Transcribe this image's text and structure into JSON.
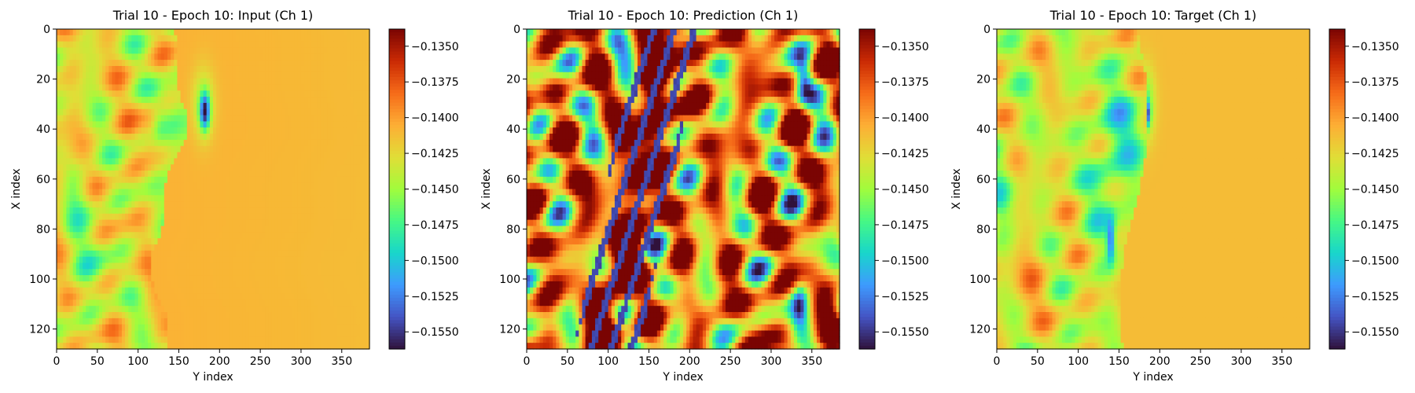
{
  "chart_data": [
    {
      "type": "heatmap",
      "title": "Trial 10 - Epoch 10: Input (Ch 1)",
      "xlabel": "Y index",
      "ylabel": "X index",
      "xlim": [
        0,
        384
      ],
      "ylim": [
        128,
        0
      ],
      "xticks": [
        0,
        50,
        100,
        150,
        200,
        250,
        300,
        350
      ],
      "yticks": [
        0,
        20,
        40,
        60,
        80,
        100,
        120
      ],
      "colorbar": {
        "range": [
          -0.1562,
          -0.1338
        ],
        "ticks": [
          "-0.1350",
          "-0.1375",
          "-0.1400",
          "-0.1425",
          "-0.1450",
          "-0.1475",
          "-0.1500",
          "-0.1525",
          "-0.1550"
        ]
      },
      "colormap": "turbo",
      "grid": false
    },
    {
      "type": "heatmap",
      "title": "Trial 10 - Epoch 10: Prediction (Ch 1)",
      "xlabel": "Y index",
      "ylabel": "X index",
      "xlim": [
        0,
        384
      ],
      "ylim": [
        128,
        0
      ],
      "xticks": [
        0,
        50,
        100,
        150,
        200,
        250,
        300,
        350
      ],
      "yticks": [
        0,
        20,
        40,
        60,
        80,
        100,
        120
      ],
      "colorbar": {
        "range": [
          -0.1562,
          -0.1338
        ],
        "ticks": [
          "-0.1350",
          "-0.1375",
          "-0.1400",
          "-0.1425",
          "-0.1450",
          "-0.1475",
          "-0.1500",
          "-0.1525",
          "-0.1550"
        ]
      },
      "colormap": "turbo",
      "grid": false
    },
    {
      "type": "heatmap",
      "title": "Trial 10 - Epoch 10: Target (Ch 1)",
      "xlabel": "Y index",
      "ylabel": "X index",
      "xlim": [
        0,
        384
      ],
      "ylim": [
        128,
        0
      ],
      "xticks": [
        0,
        50,
        100,
        150,
        200,
        250,
        300,
        350
      ],
      "yticks": [
        0,
        20,
        40,
        60,
        80,
        100,
        120
      ],
      "colorbar": {
        "range": [
          -0.1562,
          -0.1338
        ],
        "ticks": [
          "-0.1350",
          "-0.1375",
          "-0.1400",
          "-0.1425",
          "-0.1450",
          "-0.1475",
          "-0.1500",
          "-0.1525",
          "-0.1550"
        ]
      },
      "colormap": "turbo",
      "grid": false
    }
  ],
  "colors": {
    "turbo_stops": [
      "#30123b",
      "#4454c4",
      "#3e9bfe",
      "#18d6cb",
      "#46f884",
      "#a2fc3c",
      "#e1dd37",
      "#fdae35",
      "#f66b19",
      "#ca2a04",
      "#7a0403"
    ]
  }
}
